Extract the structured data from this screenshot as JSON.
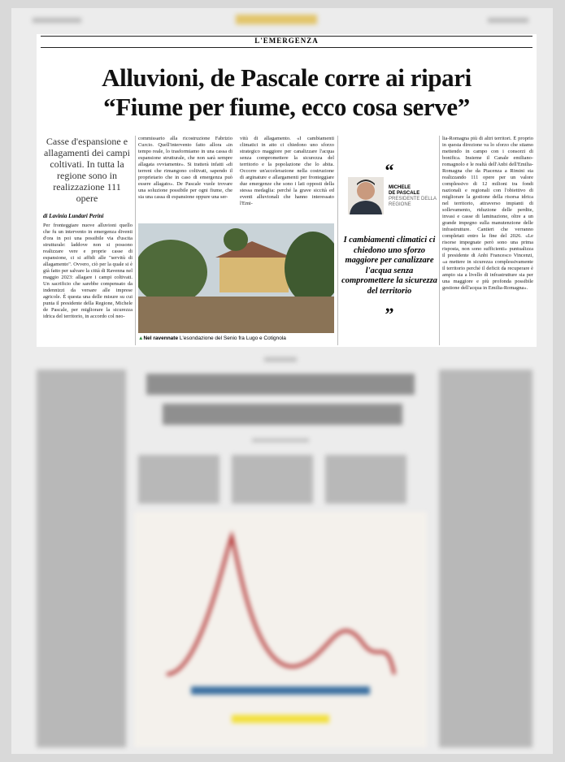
{
  "header": {
    "section": "L'EMERGENZA",
    "headline": [
      "Alluvioni, de Pascale corre ai ripari",
      "“Fiume per fiume, ecco cosa serve”"
    ]
  },
  "summary": "Casse d'espansione e allagamenti dei campi coltivati. In tutta la regione sono in realizzazione 111 opere",
  "byline": "di Lavinia Lundari Perini",
  "columns": [
    "Per fronteggiare nuove alluvioni quello che fu un intervento in emergenza diventi d'ora in poi una possibile via d'uscita strutturale: laddove non si possono realizzare vere e proprie casse di espansione, ci si affidi alle \"servitù di allagamento\". Ovvero, ciò per la quale si è già fatto per salvare la città di Ravenna nel maggio 2023: allagare i campi coltivati. Un sacrificio che sarebbe compensato da indennizzi da versare alle imprese agricole. È questa una delle misure su cui punta il presidente della Regione, Michele de Pascale, per migliorare la sicurezza idrica del territorio, in accordo col neo-",
    "commissario alla ricostruzione Fabrizio Curcio. Quell'intervento fatto allora «in tempo reale, lo trasformiamo in una cassa di espansione strutturale, che non sarà sempre allagata ovviamente». Si tratterà infatti «di terreni che rimangono coltivati, sapendo il proprietario che in caso di emergenza può essere allagato». De Pascale vuole trovare una soluzione possibile per ogni fiume, che sia una cassa di espansione oppure una ser-",
    "vitù di allagamento. «I cambiamenti climatici in atto ci chiedono uno sforzo strategico maggiore per canalizzare l'acqua senza compromettere la sicurezza del territorio e la popolazione che lo abita. Occorre un'accelerazione nella costruzione di arginature e allargamenti per fronteggiare due emergenze che sono i lati opposti della stessa medaglia: perché la grave siccità ed eventi alluvionali che hanno interessato l'Emi-",
    "lia-Romagna più di altri territori. È proprio in questa direzione va lo sforzo che stiamo mettendo in campo con i consorzi di bonifica. Insieme il Canale emiliano-romagnolo e le realtà dell'Anbi dell'Emilia-Romagna che da Piacenza a Rimini sta realizzando 111 opere per un valore complessivo di 12 milioni tra fondi nazionali e regionali con l'obiettivo di migliorare la gestione della risorsa idrica nel territorio, attraverso impianti di sollevamento, riduzione delle perdite, invasi e casse di laminazione, oltre a un grande impegno sulla manutenzione delle infrastrutture. Cantieri che verranno completati entro la fine del 2026. «Le risorse impegnate però sono una prima risposta, non sono sufficienti» puntualizza il presidente di Anbi Francesco Vincenzi, «a mettere in sicurezza complessivamente il territorio perché il deficit da recuperare è ampio sia a livello di infrastrutture sia per una maggiore e più profonda possibile gestione dell'acqua in Emilia-Romagna»."
  ],
  "photo": {
    "caption_label": "Nel ravennate",
    "caption": "L'esondazione del Senio fra Lugo e Cotignola"
  },
  "quote": {
    "open_mark": "“",
    "close_mark": "”",
    "first_name": "MICHELE",
    "surname": "DE PASCALE",
    "role": "PRESIDENTE DELLA REGIONE",
    "text": "I cambiamenti climatici ci chiedono uno sforzo maggiore per canalizzare l'acqua senza compromettere la sicurezza del territorio"
  }
}
